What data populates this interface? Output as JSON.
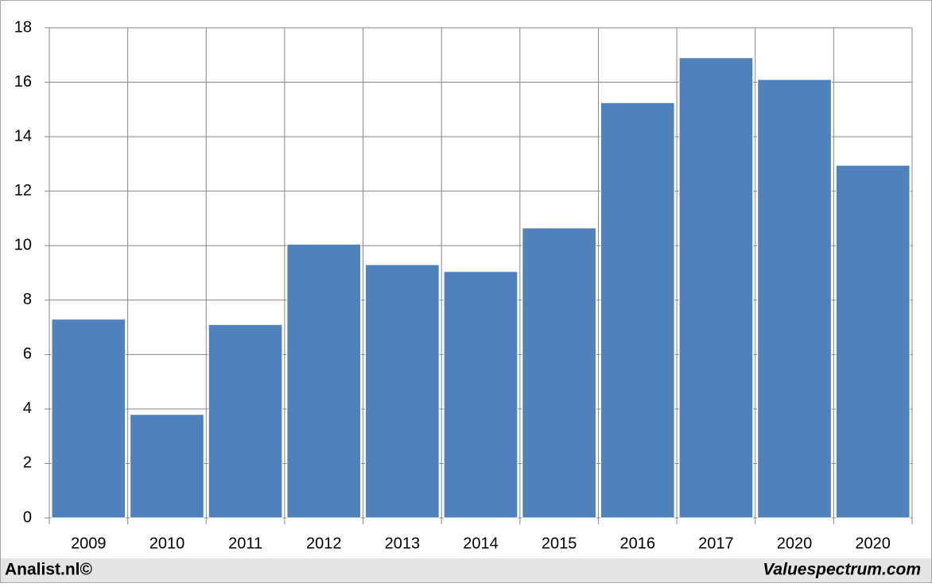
{
  "chart_data": {
    "type": "bar",
    "categories": [
      "2009",
      "2010",
      "2011",
      "2012",
      "2013",
      "2014",
      "2015",
      "2016",
      "2017",
      "2020",
      "2020"
    ],
    "values": [
      7.3,
      3.8,
      7.1,
      10.05,
      9.3,
      9.05,
      10.65,
      15.25,
      16.9,
      16.1,
      12.95
    ],
    "color": "#4f81bd",
    "ylim": [
      0,
      18
    ],
    "yticks": [
      0,
      2,
      4,
      6,
      8,
      10,
      12,
      14,
      16,
      18
    ],
    "grid": true,
    "annotations": [
      "Analist.nl©",
      "Valuespectrum.com"
    ]
  }
}
